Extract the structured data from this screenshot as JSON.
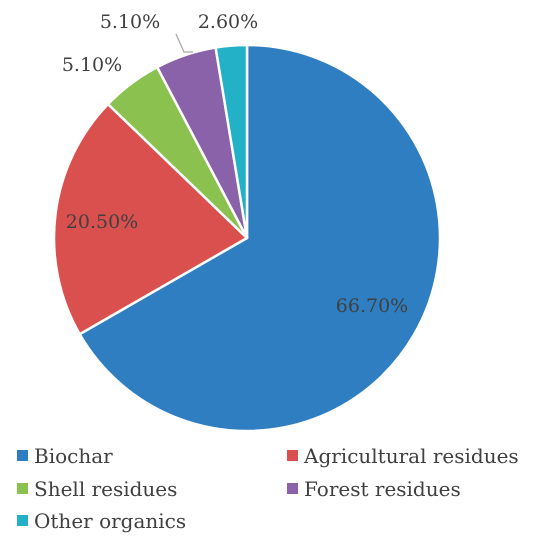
{
  "chart_data": {
    "type": "pie",
    "categories": [
      "Biochar",
      "Agricultural residues",
      "Shell residues",
      "Forest residues",
      "Other organics"
    ],
    "values": [
      66.7,
      20.5,
      5.1,
      5.1,
      2.6
    ],
    "data_labels": [
      "66.70%",
      "20.50%",
      "5.10%",
      "5.10%",
      "2.60%"
    ],
    "colors": [
      "#2e7ec1",
      "#d9504e",
      "#8bc14f",
      "#8a62a9",
      "#23b1c7"
    ],
    "start_angle_deg": 0,
    "direction": "clockwise",
    "legend_position": "bottom",
    "title": ""
  }
}
